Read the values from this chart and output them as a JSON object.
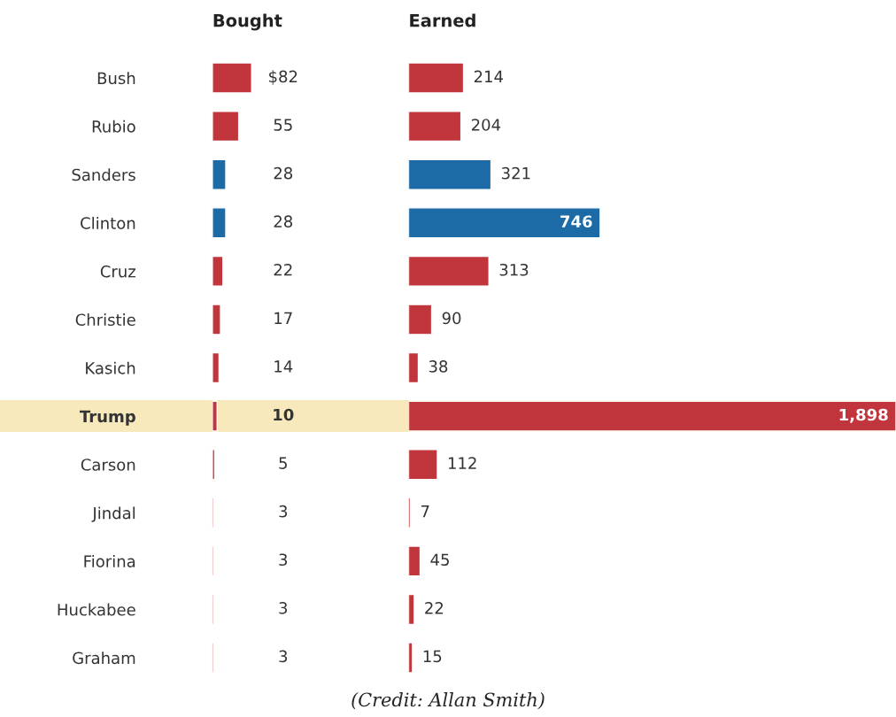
{
  "chart_data": [
    {
      "type": "bar",
      "orientation": "horizontal",
      "title": "Bought",
      "tick_labels": "y",
      "grid": false,
      "legend": false,
      "categories": [
        "Bush",
        "Rubio",
        "Sanders",
        "Clinton",
        "Cruz",
        "Christie",
        "Kasich",
        "Trump",
        "Carson",
        "Jindal",
        "Fiorina",
        "Huckabee",
        "Graham"
      ],
      "values": [
        82,
        55,
        28,
        28,
        22,
        17,
        14,
        10,
        5,
        3,
        3,
        3,
        3
      ],
      "colors": [
        "#c1363d",
        "#c1363d",
        "#1c6aa6",
        "#1c6aa6",
        "#c1363d",
        "#c1363d",
        "#c1363d",
        "#c1363d",
        "#c1363d",
        "#c1363d",
        "#c1363d",
        "#c1363d",
        "#c1363d"
      ],
      "value_labels": [
        "$82",
        "55",
        "28",
        "28",
        "22",
        "17",
        "14",
        "10",
        "5",
        "3",
        "3",
        "3",
        "3"
      ],
      "bands": [
        {
          "axis": "y",
          "from": "Trump",
          "to": "Trump",
          "color": "#f8e9bd"
        }
      ]
    },
    {
      "type": "bar",
      "orientation": "horizontal",
      "title": "Earned",
      "tick_labels": false,
      "grid": false,
      "legend": false,
      "categories": [
        "Bush",
        "Rubio",
        "Sanders",
        "Clinton",
        "Cruz",
        "Christie",
        "Kasich",
        "Trump",
        "Carson",
        "Jindal",
        "Fiorina",
        "Huckabee",
        "Graham"
      ],
      "values": [
        214,
        204,
        321,
        746,
        313,
        90,
        38,
        1898,
        112,
        7,
        45,
        22,
        15
      ],
      "colors": [
        "#c1363d",
        "#c1363d",
        "#1c6aa6",
        "#1c6aa6",
        "#c1363d",
        "#c1363d",
        "#c1363d",
        "#c1363d",
        "#c1363d",
        "#c1363d",
        "#c1363d",
        "#c1363d",
        "#c1363d"
      ],
      "value_labels": [
        "214",
        "204",
        "321",
        "746",
        "313",
        "90",
        "38",
        "1,898",
        "112",
        "7",
        "45",
        "22",
        "15"
      ],
      "bands": [
        {
          "axis": "y",
          "from": "Trump",
          "to": "Trump",
          "color": "#f8e9bd"
        }
      ],
      "annotations": [
        "(Credit: Allan Smith)"
      ]
    }
  ]
}
